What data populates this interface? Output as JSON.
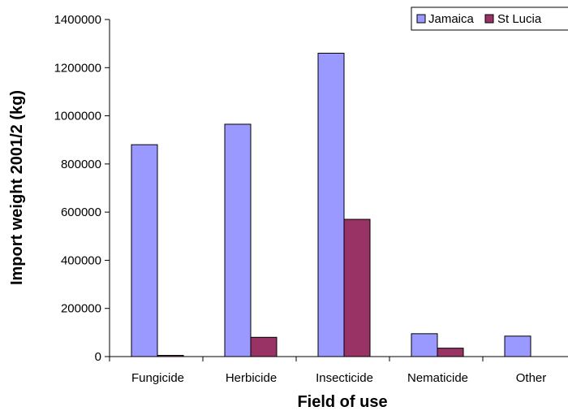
{
  "chart_data": {
    "type": "bar",
    "title": "",
    "xlabel": "Field of use",
    "ylabel": "Import weight 2001/2 (kg)",
    "categories": [
      "Fungicide",
      "Herbicide",
      "Insecticide",
      "Nematicide",
      "Other"
    ],
    "series": [
      {
        "name": "Jamaica",
        "color": "#9999FF",
        "values": [
          880000,
          965000,
          1260000,
          95000,
          85000
        ]
      },
      {
        "name": "St Lucia",
        "color": "#993366",
        "values": [
          5000,
          80000,
          570000,
          35000,
          0
        ]
      }
    ],
    "ylim": [
      0,
      1400000
    ],
    "yticks": [
      "0",
      "200000",
      "400000",
      "600000",
      "800000",
      "1000000",
      "1200000",
      "1400000"
    ],
    "grid": false,
    "legend_position": "top-right"
  }
}
